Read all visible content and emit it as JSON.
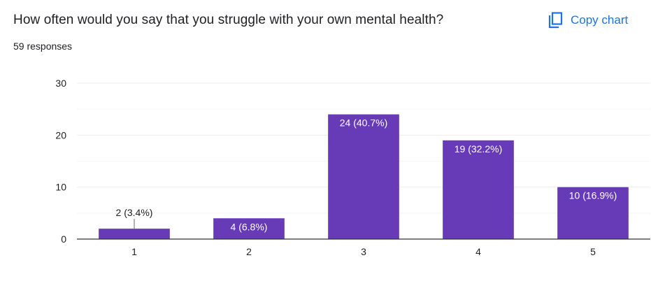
{
  "question": "How often would you say that you struggle with your own mental health?",
  "responses": "59 responses",
  "copy_button_label": "Copy chart",
  "colors": {
    "bar": "#673ab7",
    "grid": "#eeeeee",
    "axis": "#333333",
    "text": "#202124",
    "accent": "#1a73e8"
  },
  "chart_data": {
    "type": "bar",
    "categories": [
      "1",
      "2",
      "3",
      "4",
      "5"
    ],
    "values": [
      2,
      4,
      24,
      19,
      10
    ],
    "data_labels": [
      "2 (3.4%)",
      "4 (6.8%)",
      "24 (40.7%)",
      "19 (32.2%)",
      "10 (16.9%)"
    ],
    "ylim": [
      0,
      30
    ],
    "yticks": [
      0,
      10,
      20,
      30
    ],
    "grid": true,
    "legend": "none"
  }
}
